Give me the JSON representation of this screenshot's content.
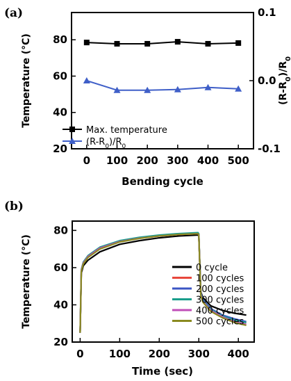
{
  "chart_data": [
    {
      "panel_label": "(a)",
      "type": "line",
      "title": "",
      "xlabel": "Bending cycle",
      "ylabel": "Temperature (°C)",
      "y2label": "(R-R0)/R0",
      "y2label_parts": [
        "(R-R",
        "0",
        ")/R",
        "0"
      ],
      "x": [
        0,
        100,
        200,
        300,
        400,
        500
      ],
      "xlim": [
        -50,
        550
      ],
      "ylim": [
        20,
        95
      ],
      "y2lim": [
        -0.1,
        0.1
      ],
      "xticks": [
        "0",
        "100",
        "200",
        "300",
        "400",
        "500"
      ],
      "yticks": [
        "20",
        "40",
        "60",
        "80"
      ],
      "y2ticks": [
        "-0.1",
        "0.0",
        "0.1"
      ],
      "grid": false,
      "legend_position": "bottom-left",
      "series": [
        {
          "name": "Max. temperature",
          "name_parts": [
            "Max. temperature"
          ],
          "axis": "left",
          "marker": "square",
          "color": "#000000",
          "values": [
            78.5,
            77.8,
            77.8,
            78.9,
            77.8,
            78.2
          ]
        },
        {
          "name": "(R-R0)/R0",
          "name_parts": [
            "(R-R",
            "0",
            ")/R",
            "0"
          ],
          "axis": "right",
          "marker": "triangle",
          "color": "#3f5fc8",
          "values": [
            0.0,
            -0.014,
            -0.014,
            -0.013,
            -0.01,
            -0.012
          ]
        }
      ]
    },
    {
      "panel_label": "(b)",
      "type": "line",
      "title": "",
      "xlabel": "Time (sec)",
      "ylabel": "Temperature (°C)",
      "xlim": [
        -20,
        440
      ],
      "ylim": [
        20,
        85
      ],
      "xticks": [
        "0",
        "100",
        "200",
        "300",
        "400"
      ],
      "yticks": [
        "20",
        "40",
        "60",
        "80"
      ],
      "grid": false,
      "legend_position": "center-right",
      "series": [
        {
          "name": "0 cycle",
          "color": "#000000",
          "x": [
            0,
            3,
            8,
            20,
            50,
            100,
            150,
            200,
            250,
            298,
            300,
            305,
            310,
            330,
            360,
            390,
            420
          ],
          "values": [
            25,
            57,
            61,
            64,
            68.5,
            72.5,
            74.5,
            76,
            77,
            77.5,
            77,
            47,
            44,
            39.5,
            37,
            35.5,
            34.5
          ]
        },
        {
          "name": "100 cycles",
          "color": "#e8473c",
          "x": [
            0,
            3,
            8,
            20,
            50,
            100,
            150,
            200,
            250,
            298,
            300,
            305,
            310,
            330,
            360,
            390,
            420
          ],
          "values": [
            25,
            58.5,
            62.5,
            66,
            70.5,
            74,
            75.8,
            77,
            77.8,
            78.2,
            77.6,
            46,
            42.5,
            37.5,
            34,
            32,
            30.5
          ]
        },
        {
          "name": "200 cycles",
          "color": "#3b55c4",
          "x": [
            0,
            3,
            8,
            20,
            50,
            100,
            150,
            200,
            250,
            298,
            300,
            305,
            310,
            330,
            360,
            390,
            420
          ],
          "values": [
            25,
            58.5,
            62.5,
            66,
            70.5,
            74,
            76,
            77.2,
            78,
            78.4,
            77.8,
            46.5,
            43,
            38,
            34.5,
            32.5,
            31
          ]
        },
        {
          "name": "300 cycles",
          "color": "#1a9e8c",
          "x": [
            0,
            3,
            8,
            20,
            50,
            100,
            150,
            200,
            250,
            298,
            300,
            305,
            310,
            330,
            360,
            390,
            420
          ],
          "values": [
            25,
            59,
            63,
            66.5,
            71,
            74.5,
            76.3,
            77.5,
            78.3,
            78.8,
            78.2,
            46,
            42.5,
            37.5,
            34,
            31.8,
            30.5
          ]
        },
        {
          "name": "400 cycles",
          "color": "#c04fb8",
          "x": [
            0,
            3,
            8,
            20,
            50,
            100,
            150,
            200,
            250,
            298,
            300,
            305,
            310,
            330,
            360,
            390,
            420
          ],
          "values": [
            25,
            58.5,
            62.5,
            66,
            70.5,
            74,
            75.8,
            77,
            77.8,
            78.2,
            77.6,
            45.5,
            42,
            37,
            33.5,
            31,
            29.5
          ]
        },
        {
          "name": "500 cycles",
          "color": "#8a8a20",
          "x": [
            0,
            3,
            8,
            20,
            50,
            100,
            150,
            200,
            250,
            298,
            300,
            305,
            310,
            330,
            360,
            390,
            420
          ],
          "values": [
            25,
            58,
            62,
            65.5,
            70,
            73.8,
            75.7,
            77,
            77.8,
            78.2,
            77.6,
            45,
            41.5,
            36.5,
            33,
            30.5,
            29
          ]
        }
      ]
    }
  ]
}
